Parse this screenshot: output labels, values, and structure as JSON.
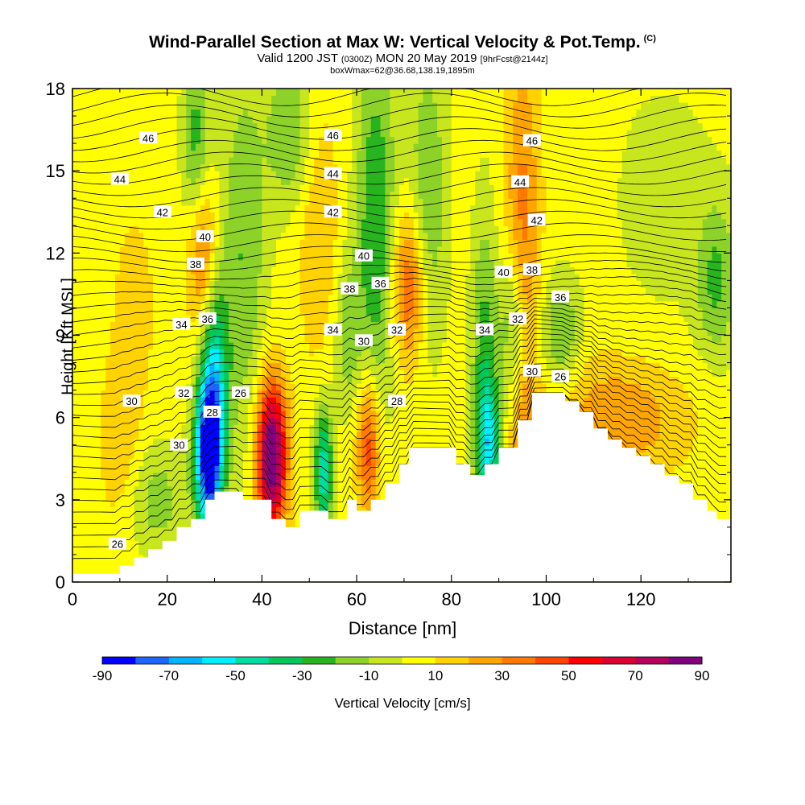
{
  "title": {
    "main": "Wind-Parallel Section at Max W: Vertical Velocity & Pot.Temp.",
    "copyright": "(C)",
    "valid_prefix": "Valid 1200 JST",
    "valid_utc": "(0300Z)",
    "valid_date": "MON 20 May 2019",
    "forecast": "[9hrFcst@2144z]",
    "boxwmax": "boxWmax=62@36.68,138.19,1895m"
  },
  "chart_data": {
    "type": "heatmap",
    "xlabel": "Distance [nm]",
    "ylabel": "Height [Kft MSL]",
    "xlim": [
      0,
      139
    ],
    "ylim": [
      0,
      18
    ],
    "xticks": [
      0,
      20,
      40,
      60,
      80,
      100,
      120
    ],
    "yticks": [
      0,
      3,
      6,
      9,
      12,
      15,
      18
    ],
    "colorbar": {
      "label": "Vertical Velocity [cm/s]",
      "ticks": [
        -90,
        -70,
        -50,
        -30,
        -10,
        10,
        30,
        50,
        70,
        90
      ],
      "colors": [
        "#0000ff",
        "#1e64ff",
        "#00b4ff",
        "#00f0ff",
        "#00dca0",
        "#00c85a",
        "#28b41e",
        "#8cd228",
        "#c8e61e",
        "#ffff00",
        "#ffd200",
        "#ffa500",
        "#ff7800",
        "#ff4600",
        "#ff0000",
        "#dc0032",
        "#b4005a",
        "#800080"
      ]
    },
    "background_w": 5,
    "terrain_kft": [
      [
        0,
        0.3
      ],
      [
        6,
        0.3
      ],
      [
        6,
        0.3
      ],
      [
        10,
        0.3
      ],
      [
        10,
        0.6
      ],
      [
        13,
        0.6
      ],
      [
        13,
        0.9
      ],
      [
        16,
        0.9
      ],
      [
        16,
        1.2
      ],
      [
        19,
        1.2
      ],
      [
        19,
        1.5
      ],
      [
        22,
        1.5
      ],
      [
        22,
        2
      ],
      [
        25,
        2
      ],
      [
        25,
        2.3
      ],
      [
        28,
        2.3
      ],
      [
        28,
        3
      ],
      [
        30,
        3
      ],
      [
        30,
        3.3
      ],
      [
        36,
        3.3
      ],
      [
        36,
        3
      ],
      [
        42,
        3
      ],
      [
        42,
        2.3
      ],
      [
        45,
        2.3
      ],
      [
        45,
        2
      ],
      [
        48,
        2
      ],
      [
        48,
        2.6
      ],
      [
        54,
        2.6
      ],
      [
        54,
        2.3
      ],
      [
        58,
        2.3
      ],
      [
        58,
        3
      ],
      [
        60,
        3
      ],
      [
        60,
        2.6
      ],
      [
        63,
        2.6
      ],
      [
        63,
        3
      ],
      [
        66,
        3
      ],
      [
        66,
        3.6
      ],
      [
        69,
        3.6
      ],
      [
        69,
        4.3
      ],
      [
        71,
        4.3
      ],
      [
        71,
        4.9
      ],
      [
        81,
        4.9
      ],
      [
        81,
        4.3
      ],
      [
        84,
        4.3
      ],
      [
        84,
        3.9
      ],
      [
        87,
        3.9
      ],
      [
        87,
        4.3
      ],
      [
        90,
        4.3
      ],
      [
        90,
        4.9
      ],
      [
        94,
        4.9
      ],
      [
        94,
        5.9
      ],
      [
        97,
        5.9
      ],
      [
        97,
        6.9
      ],
      [
        104,
        6.9
      ],
      [
        104,
        6.6
      ],
      [
        107,
        6.6
      ],
      [
        107,
        6.2
      ],
      [
        110,
        6.2
      ],
      [
        110,
        5.6
      ],
      [
        113,
        5.6
      ],
      [
        113,
        5.2
      ],
      [
        116,
        5.2
      ],
      [
        116,
        4.9
      ],
      [
        119,
        4.9
      ],
      [
        119,
        4.6
      ],
      [
        122,
        4.6
      ],
      [
        122,
        4.3
      ],
      [
        125,
        4.3
      ],
      [
        125,
        3.9
      ],
      [
        128,
        3.9
      ],
      [
        128,
        3.6
      ],
      [
        131,
        3.6
      ],
      [
        131,
        3
      ],
      [
        134,
        3
      ],
      [
        134,
        2.6
      ],
      [
        136,
        2.6
      ],
      [
        136,
        2.3
      ],
      [
        139,
        2.3
      ]
    ],
    "w_features": [
      {
        "x": 42,
        "y": 4.6,
        "sx": 2.2,
        "sy": 1.9,
        "value": 95
      },
      {
        "x": 28.5,
        "y": 4.6,
        "sx": 2.0,
        "sy": 2.0,
        "value": -85
      },
      {
        "x": 53,
        "y": 4.0,
        "sx": 1.4,
        "sy": 1.7,
        "value": -55
      },
      {
        "x": 62.5,
        "y": 5.0,
        "sx": 1.8,
        "sy": 1.8,
        "value": 45
      },
      {
        "x": 88,
        "y": 5.0,
        "sx": 1.8,
        "sy": 1.6,
        "value": -45
      },
      {
        "x": 97,
        "y": 4.2,
        "sx": 2.5,
        "sy": 1.5,
        "value": 25
      },
      {
        "x": 30,
        "y": 7.0,
        "sx": 2.0,
        "sy": 3.0,
        "value": -50
      },
      {
        "x": 36,
        "y": 12.0,
        "sx": 3.5,
        "sy": 5.0,
        "value": -25
      },
      {
        "x": 27.5,
        "y": 12.0,
        "sx": 2.2,
        "sy": 2.0,
        "value": 35
      },
      {
        "x": 26,
        "y": 16.0,
        "sx": 2.0,
        "sy": 2.5,
        "value": -30
      },
      {
        "x": 46,
        "y": 16.5,
        "sx": 3.5,
        "sy": 2.0,
        "value": -25
      },
      {
        "x": 52,
        "y": 13.0,
        "sx": 3.0,
        "sy": 3.5,
        "value": 15
      },
      {
        "x": 64,
        "y": 13.0,
        "sx": 3.0,
        "sy": 5.0,
        "value": -35
      },
      {
        "x": 71,
        "y": 10.8,
        "sx": 2.5,
        "sy": 2.0,
        "value": 40
      },
      {
        "x": 58,
        "y": 9.0,
        "sx": 2.0,
        "sy": 2.0,
        "value": -20
      },
      {
        "x": 75,
        "y": 14.0,
        "sx": 3.0,
        "sy": 4.0,
        "value": -25
      },
      {
        "x": 87,
        "y": 8.0,
        "sx": 2.0,
        "sy": 4.0,
        "value": -30
      },
      {
        "x": 95,
        "y": 12.5,
        "sx": 2.5,
        "sy": 5.0,
        "value": 30
      },
      {
        "x": 93,
        "y": 9.5,
        "sx": 2.0,
        "sy": 2.0,
        "value": -30
      },
      {
        "x": 103,
        "y": 9.0,
        "sx": 3.0,
        "sy": 1.5,
        "value": -25
      },
      {
        "x": 13,
        "y": 10.0,
        "sx": 4.0,
        "sy": 3.0,
        "value": 8
      },
      {
        "x": 10,
        "y": 5.0,
        "sx": 3.0,
        "sy": 2.0,
        "value": 12
      },
      {
        "x": 18,
        "y": 3.0,
        "sx": 4.0,
        "sy": 1.5,
        "value": -20
      },
      {
        "x": 115,
        "y": 6.0,
        "sx": 10.0,
        "sy": 1.5,
        "value": 25
      },
      {
        "x": 125,
        "y": 14.0,
        "sx": 10.0,
        "sy": 4.0,
        "value": -8
      },
      {
        "x": 136,
        "y": 11.0,
        "sx": 3.0,
        "sy": 2.0,
        "value": -25
      }
    ],
    "contour_labels": [
      {
        "text": "46",
        "x": 16,
        "y": 16.2
      },
      {
        "text": "44",
        "x": 10,
        "y": 14.7
      },
      {
        "text": "42",
        "x": 19,
        "y": 13.5
      },
      {
        "text": "40",
        "x": 28,
        "y": 12.6
      },
      {
        "text": "38",
        "x": 26,
        "y": 11.6
      },
      {
        "text": "36",
        "x": 28.5,
        "y": 9.6
      },
      {
        "text": "34",
        "x": 23,
        "y": 9.4
      },
      {
        "text": "32",
        "x": 23.5,
        "y": 6.9
      },
      {
        "text": "30",
        "x": 12.5,
        "y": 6.6
      },
      {
        "text": "28",
        "x": 29.5,
        "y": 6.2
      },
      {
        "text": "30",
        "x": 22.5,
        "y": 5.0
      },
      {
        "text": "26",
        "x": 35.5,
        "y": 6.9
      },
      {
        "text": "26",
        "x": 9.5,
        "y": 1.4
      },
      {
        "text": "46",
        "x": 55,
        "y": 16.3
      },
      {
        "text": "44",
        "x": 55,
        "y": 14.9
      },
      {
        "text": "42",
        "x": 55,
        "y": 13.5
      },
      {
        "text": "40",
        "x": 61.5,
        "y": 11.9
      },
      {
        "text": "38",
        "x": 58.5,
        "y": 10.7
      },
      {
        "text": "36",
        "x": 65,
        "y": 10.9
      },
      {
        "text": "34",
        "x": 55,
        "y": 9.2
      },
      {
        "text": "30",
        "x": 61.5,
        "y": 8.8
      },
      {
        "text": "32",
        "x": 68.5,
        "y": 9.2
      },
      {
        "text": "28",
        "x": 68.5,
        "y": 6.6
      },
      {
        "text": "46",
        "x": 97,
        "y": 16.1
      },
      {
        "text": "44",
        "x": 94.5,
        "y": 14.6
      },
      {
        "text": "42",
        "x": 98,
        "y": 13.2
      },
      {
        "text": "40",
        "x": 91,
        "y": 11.3
      },
      {
        "text": "38",
        "x": 97,
        "y": 11.4
      },
      {
        "text": "36",
        "x": 103,
        "y": 10.4
      },
      {
        "text": "34",
        "x": 87,
        "y": 9.2
      },
      {
        "text": "32",
        "x": 94,
        "y": 9.6
      },
      {
        "text": "30",
        "x": 97,
        "y": 7.7
      },
      {
        "text": "26",
        "x": 103,
        "y": 7.5
      }
    ]
  }
}
